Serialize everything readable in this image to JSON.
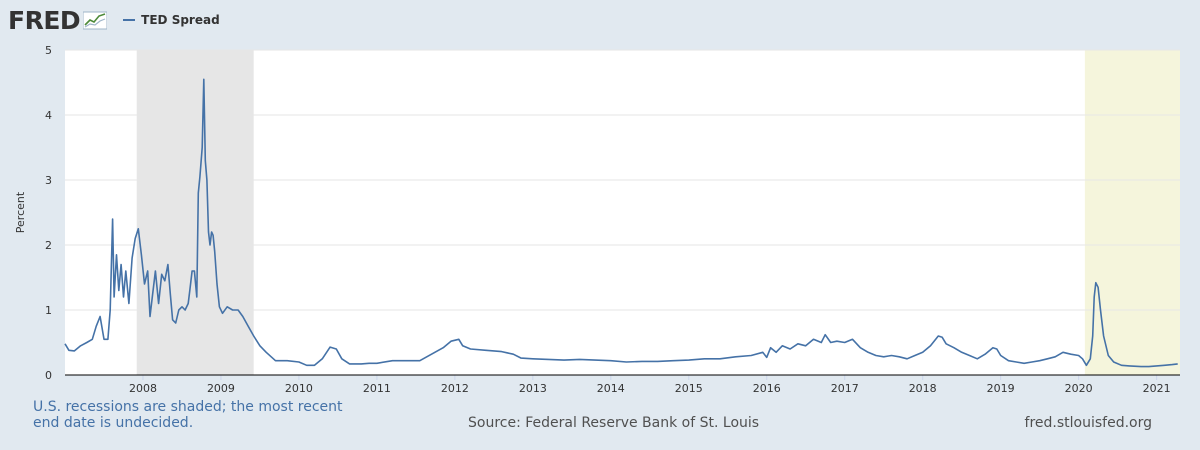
{
  "logo": {
    "text": "FRED",
    "icon": "chart-line-icon"
  },
  "legend": {
    "label": "TED Spread",
    "color": "#4572a7"
  },
  "footer": {
    "note": "U.S. recessions are shaded; the most recent end date is undecided.",
    "source": "Source: Federal Reserve Bank of St. Louis",
    "url": "fred.stlouisfed.org"
  },
  "colors": {
    "background": "#e1e9f0",
    "plot": "#ffffff",
    "series": "#4572a7",
    "recession_closed": "#e6e6e6",
    "recession_open": "#f5f5dc"
  },
  "chart_data": {
    "type": "line",
    "title": "",
    "xlabel": "",
    "ylabel": "Percent",
    "ylim": [
      0,
      5
    ],
    "xlim": [
      2007.0,
      2021.3
    ],
    "grid": true,
    "legend_position": "top-left",
    "y_ticks": [
      "0",
      "1",
      "2",
      "3",
      "4",
      "5"
    ],
    "x_ticks": [
      "2008",
      "2009",
      "2010",
      "2011",
      "2012",
      "2013",
      "2014",
      "2015",
      "2016",
      "2017",
      "2018",
      "2019",
      "2020",
      "2021"
    ],
    "recessions": [
      {
        "start": 2007.92,
        "end": 2009.42,
        "ongoing": false
      },
      {
        "start": 2020.08,
        "end": 2021.3,
        "ongoing": true
      }
    ],
    "series": [
      {
        "name": "TED Spread",
        "points": [
          [
            2007.0,
            0.48
          ],
          [
            2007.05,
            0.38
          ],
          [
            2007.12,
            0.37
          ],
          [
            2007.2,
            0.45
          ],
          [
            2007.28,
            0.5
          ],
          [
            2007.35,
            0.55
          ],
          [
            2007.4,
            0.75
          ],
          [
            2007.45,
            0.9
          ],
          [
            2007.5,
            0.55
          ],
          [
            2007.55,
            0.55
          ],
          [
            2007.58,
            1.0
          ],
          [
            2007.61,
            2.4
          ],
          [
            2007.63,
            1.2
          ],
          [
            2007.66,
            1.85
          ],
          [
            2007.69,
            1.3
          ],
          [
            2007.72,
            1.7
          ],
          [
            2007.75,
            1.2
          ],
          [
            2007.78,
            1.6
          ],
          [
            2007.82,
            1.1
          ],
          [
            2007.86,
            1.8
          ],
          [
            2007.9,
            2.1
          ],
          [
            2007.94,
            2.25
          ],
          [
            2007.98,
            1.85
          ],
          [
            2008.02,
            1.4
          ],
          [
            2008.06,
            1.6
          ],
          [
            2008.09,
            0.9
          ],
          [
            2008.12,
            1.2
          ],
          [
            2008.16,
            1.6
          ],
          [
            2008.2,
            1.1
          ],
          [
            2008.24,
            1.55
          ],
          [
            2008.28,
            1.45
          ],
          [
            2008.32,
            1.7
          ],
          [
            2008.35,
            1.25
          ],
          [
            2008.38,
            0.85
          ],
          [
            2008.42,
            0.8
          ],
          [
            2008.46,
            1.0
          ],
          [
            2008.5,
            1.05
          ],
          [
            2008.54,
            1.0
          ],
          [
            2008.58,
            1.1
          ],
          [
            2008.6,
            1.3
          ],
          [
            2008.63,
            1.6
          ],
          [
            2008.66,
            1.6
          ],
          [
            2008.69,
            1.2
          ],
          [
            2008.71,
            2.8
          ],
          [
            2008.73,
            3.05
          ],
          [
            2008.76,
            3.5
          ],
          [
            2008.78,
            4.55
          ],
          [
            2008.8,
            3.3
          ],
          [
            2008.82,
            3.0
          ],
          [
            2008.84,
            2.2
          ],
          [
            2008.86,
            2.0
          ],
          [
            2008.88,
            2.2
          ],
          [
            2008.9,
            2.15
          ],
          [
            2008.92,
            1.9
          ],
          [
            2008.95,
            1.4
          ],
          [
            2008.98,
            1.05
          ],
          [
            2009.02,
            0.95
          ],
          [
            2009.08,
            1.05
          ],
          [
            2009.15,
            1.0
          ],
          [
            2009.22,
            1.0
          ],
          [
            2009.28,
            0.9
          ],
          [
            2009.35,
            0.75
          ],
          [
            2009.42,
            0.6
          ],
          [
            2009.5,
            0.45
          ],
          [
            2009.58,
            0.35
          ],
          [
            2009.7,
            0.22
          ],
          [
            2009.85,
            0.22
          ],
          [
            2010.0,
            0.2
          ],
          [
            2010.1,
            0.15
          ],
          [
            2010.2,
            0.15
          ],
          [
            2010.3,
            0.25
          ],
          [
            2010.4,
            0.43
          ],
          [
            2010.48,
            0.4
          ],
          [
            2010.55,
            0.25
          ],
          [
            2010.65,
            0.17
          ],
          [
            2010.8,
            0.17
          ],
          [
            2010.9,
            0.18
          ],
          [
            2011.0,
            0.18
          ],
          [
            2011.2,
            0.22
          ],
          [
            2011.4,
            0.22
          ],
          [
            2011.55,
            0.22
          ],
          [
            2011.7,
            0.32
          ],
          [
            2011.85,
            0.42
          ],
          [
            2011.95,
            0.52
          ],
          [
            2012.05,
            0.55
          ],
          [
            2012.1,
            0.45
          ],
          [
            2012.2,
            0.4
          ],
          [
            2012.4,
            0.38
          ],
          [
            2012.6,
            0.36
          ],
          [
            2012.75,
            0.32
          ],
          [
            2012.85,
            0.26
          ],
          [
            2013.0,
            0.25
          ],
          [
            2013.2,
            0.24
          ],
          [
            2013.4,
            0.23
          ],
          [
            2013.6,
            0.24
          ],
          [
            2013.8,
            0.23
          ],
          [
            2014.0,
            0.22
          ],
          [
            2014.2,
            0.2
          ],
          [
            2014.4,
            0.21
          ],
          [
            2014.6,
            0.21
          ],
          [
            2014.8,
            0.22
          ],
          [
            2015.0,
            0.23
          ],
          [
            2015.2,
            0.25
          ],
          [
            2015.4,
            0.25
          ],
          [
            2015.6,
            0.28
          ],
          [
            2015.8,
            0.3
          ],
          [
            2015.95,
            0.35
          ],
          [
            2016.0,
            0.27
          ],
          [
            2016.05,
            0.42
          ],
          [
            2016.12,
            0.35
          ],
          [
            2016.2,
            0.45
          ],
          [
            2016.3,
            0.4
          ],
          [
            2016.4,
            0.48
          ],
          [
            2016.5,
            0.45
          ],
          [
            2016.6,
            0.55
          ],
          [
            2016.7,
            0.5
          ],
          [
            2016.75,
            0.62
          ],
          [
            2016.82,
            0.5
          ],
          [
            2016.9,
            0.52
          ],
          [
            2017.0,
            0.5
          ],
          [
            2017.1,
            0.55
          ],
          [
            2017.2,
            0.42
          ],
          [
            2017.3,
            0.35
          ],
          [
            2017.4,
            0.3
          ],
          [
            2017.5,
            0.28
          ],
          [
            2017.6,
            0.3
          ],
          [
            2017.7,
            0.28
          ],
          [
            2017.8,
            0.25
          ],
          [
            2017.9,
            0.3
          ],
          [
            2018.0,
            0.35
          ],
          [
            2018.1,
            0.45
          ],
          [
            2018.2,
            0.6
          ],
          [
            2018.25,
            0.58
          ],
          [
            2018.3,
            0.48
          ],
          [
            2018.4,
            0.42
          ],
          [
            2018.5,
            0.35
          ],
          [
            2018.6,
            0.3
          ],
          [
            2018.7,
            0.25
          ],
          [
            2018.8,
            0.32
          ],
          [
            2018.9,
            0.42
          ],
          [
            2018.95,
            0.4
          ],
          [
            2019.0,
            0.3
          ],
          [
            2019.1,
            0.22
          ],
          [
            2019.2,
            0.2
          ],
          [
            2019.3,
            0.18
          ],
          [
            2019.4,
            0.2
          ],
          [
            2019.5,
            0.22
          ],
          [
            2019.6,
            0.25
          ],
          [
            2019.7,
            0.28
          ],
          [
            2019.8,
            0.35
          ],
          [
            2019.9,
            0.32
          ],
          [
            2020.0,
            0.3
          ],
          [
            2020.05,
            0.25
          ],
          [
            2020.1,
            0.15
          ],
          [
            2020.15,
            0.25
          ],
          [
            2020.18,
            0.6
          ],
          [
            2020.2,
            1.2
          ],
          [
            2020.22,
            1.42
          ],
          [
            2020.25,
            1.35
          ],
          [
            2020.28,
            1.0
          ],
          [
            2020.32,
            0.6
          ],
          [
            2020.38,
            0.3
          ],
          [
            2020.45,
            0.2
          ],
          [
            2020.55,
            0.15
          ],
          [
            2020.65,
            0.14
          ],
          [
            2020.8,
            0.13
          ],
          [
            2020.9,
            0.13
          ],
          [
            2021.0,
            0.14
          ],
          [
            2021.1,
            0.15
          ],
          [
            2021.2,
            0.16
          ],
          [
            2021.27,
            0.17
          ]
        ]
      }
    ]
  }
}
